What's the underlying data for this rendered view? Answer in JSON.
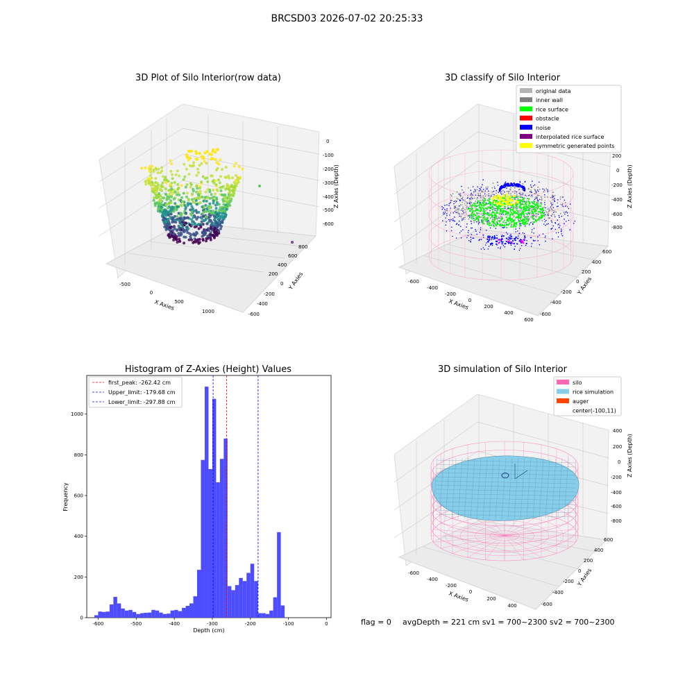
{
  "figure_title": "BRCSD03 2026-07-02 20:25:33",
  "footer": {
    "flag": "flag = 0",
    "metrics": "avgDepth = 221 cm  sv1 = 700~2300  sv2 = 700~2300"
  },
  "panels": {
    "raw": {
      "title": "3D Plot of Silo Interior(row data)",
      "xlabel": "X Axies",
      "ylabel": "Y Axies",
      "zlabel": "Z Axies (Depth)",
      "xticks": [
        "-500",
        "0",
        "500",
        "1000"
      ],
      "yticks": [
        "800",
        "600",
        "400",
        "200",
        "0",
        "-200",
        "-400",
        "-600"
      ],
      "zticks": [
        "0",
        "-100",
        "-200",
        "-300",
        "-400",
        "-500",
        "-600"
      ]
    },
    "classify": {
      "title": "3D classify of Silo Interior",
      "xlabel": "X Axies",
      "ylabel": "Y Axies",
      "zlabel": "Z Axies (Depth)",
      "xticks": [
        "-600",
        "-400",
        "-200",
        "0",
        "200",
        "400",
        "600"
      ],
      "yticks": [
        "600",
        "400",
        "200",
        "0",
        "-200",
        "-400",
        "-600"
      ],
      "zticks": [
        "200",
        "0",
        "-200",
        "-400",
        "-600",
        "-800"
      ],
      "legend": [
        {
          "label": "original data",
          "color": "#b4b4b4"
        },
        {
          "label": "inner wall",
          "color": "#808080"
        },
        {
          "label": "rice surface",
          "color": "#00ff00"
        },
        {
          "label": "obstacle",
          "color": "#ff0000"
        },
        {
          "label": "noise",
          "color": "#0000ff"
        },
        {
          "label": "interpolated rice surface",
          "color": "#800080"
        },
        {
          "label": "symmetric generated points",
          "color": "#ffff00"
        }
      ]
    },
    "simulation": {
      "title": "3D simulation of Silo Interior",
      "xlabel": "X Axies",
      "ylabel": "Y Axies",
      "zlabel": "Z Axies (Depth)",
      "xticks": [
        "-600",
        "-400",
        "-200",
        "0",
        "200",
        "400"
      ],
      "yticks": [
        "600",
        "400",
        "200",
        "0",
        "-200",
        "-400",
        "-600"
      ],
      "zticks": [
        "400",
        "200",
        "0",
        "-200",
        "-400",
        "-600",
        "-800"
      ],
      "legend": [
        {
          "label": "silo",
          "color": "#ff69b4"
        },
        {
          "label": "rice simulation",
          "color": "#87ceeb"
        },
        {
          "label": "auger",
          "color": "#ff4500"
        },
        {
          "label": "center(-100,11)",
          "color": "#ffffff"
        }
      ]
    }
  },
  "chart_data": {
    "type": "bar",
    "title": "Histogram of Z-Axies (Height) Values",
    "xlabel": "Depth (cm)",
    "ylabel": "Frequency",
    "xlim": [
      -630,
      12
    ],
    "ylim": [
      0,
      1190
    ],
    "bin_width": 10,
    "xticks": [
      -600,
      -500,
      -400,
      -300,
      -200,
      -100,
      0
    ],
    "yticks": [
      0,
      200,
      400,
      600,
      800,
      1000
    ],
    "bar_color": "#4d4dff",
    "bins": [
      {
        "x": -610,
        "y": 12
      },
      {
        "x": -600,
        "y": 30
      },
      {
        "x": -590,
        "y": 28
      },
      {
        "x": -580,
        "y": 30
      },
      {
        "x": -570,
        "y": 65
      },
      {
        "x": -560,
        "y": 102
      },
      {
        "x": -550,
        "y": 70
      },
      {
        "x": -540,
        "y": 45
      },
      {
        "x": -530,
        "y": 35
      },
      {
        "x": -520,
        "y": 38
      },
      {
        "x": -510,
        "y": 28
      },
      {
        "x": -500,
        "y": 18
      },
      {
        "x": -490,
        "y": 22
      },
      {
        "x": -480,
        "y": 24
      },
      {
        "x": -470,
        "y": 25
      },
      {
        "x": -460,
        "y": 38
      },
      {
        "x": -450,
        "y": 35
      },
      {
        "x": -440,
        "y": 25
      },
      {
        "x": -430,
        "y": 18
      },
      {
        "x": -420,
        "y": 20
      },
      {
        "x": -410,
        "y": 35
      },
      {
        "x": -400,
        "y": 38
      },
      {
        "x": -390,
        "y": 32
      },
      {
        "x": -380,
        "y": 48
      },
      {
        "x": -370,
        "y": 58
      },
      {
        "x": -360,
        "y": 70
      },
      {
        "x": -350,
        "y": 105
      },
      {
        "x": -340,
        "y": 235
      },
      {
        "x": -330,
        "y": 775
      },
      {
        "x": -320,
        "y": 1135
      },
      {
        "x": -310,
        "y": 730
      },
      {
        "x": -300,
        "y": 1075
      },
      {
        "x": -290,
        "y": 665
      },
      {
        "x": -280,
        "y": 780
      },
      {
        "x": -270,
        "y": 880
      },
      {
        "x": -260,
        "y": 155
      },
      {
        "x": -250,
        "y": 135
      },
      {
        "x": -240,
        "y": 160
      },
      {
        "x": -230,
        "y": 195
      },
      {
        "x": -220,
        "y": 180
      },
      {
        "x": -210,
        "y": 220
      },
      {
        "x": -200,
        "y": 265
      },
      {
        "x": -190,
        "y": 180
      },
      {
        "x": -180,
        "y": 22
      },
      {
        "x": -170,
        "y": 22
      },
      {
        "x": -160,
        "y": 18
      },
      {
        "x": -150,
        "y": 35
      },
      {
        "x": -140,
        "y": 100
      },
      {
        "x": -130,
        "y": 420
      },
      {
        "x": -120,
        "y": 60
      }
    ],
    "lines": [
      {
        "label": "first_peak: -262.42 cm",
        "x": -262.42,
        "color": "#ff0000"
      },
      {
        "label": "Upper_limit: -179.68 cm",
        "x": -179.68,
        "color": "#0000ff"
      },
      {
        "label": "Lower_limit: -297.88 cm",
        "x": -297.88,
        "color": "#0000ff"
      }
    ]
  }
}
